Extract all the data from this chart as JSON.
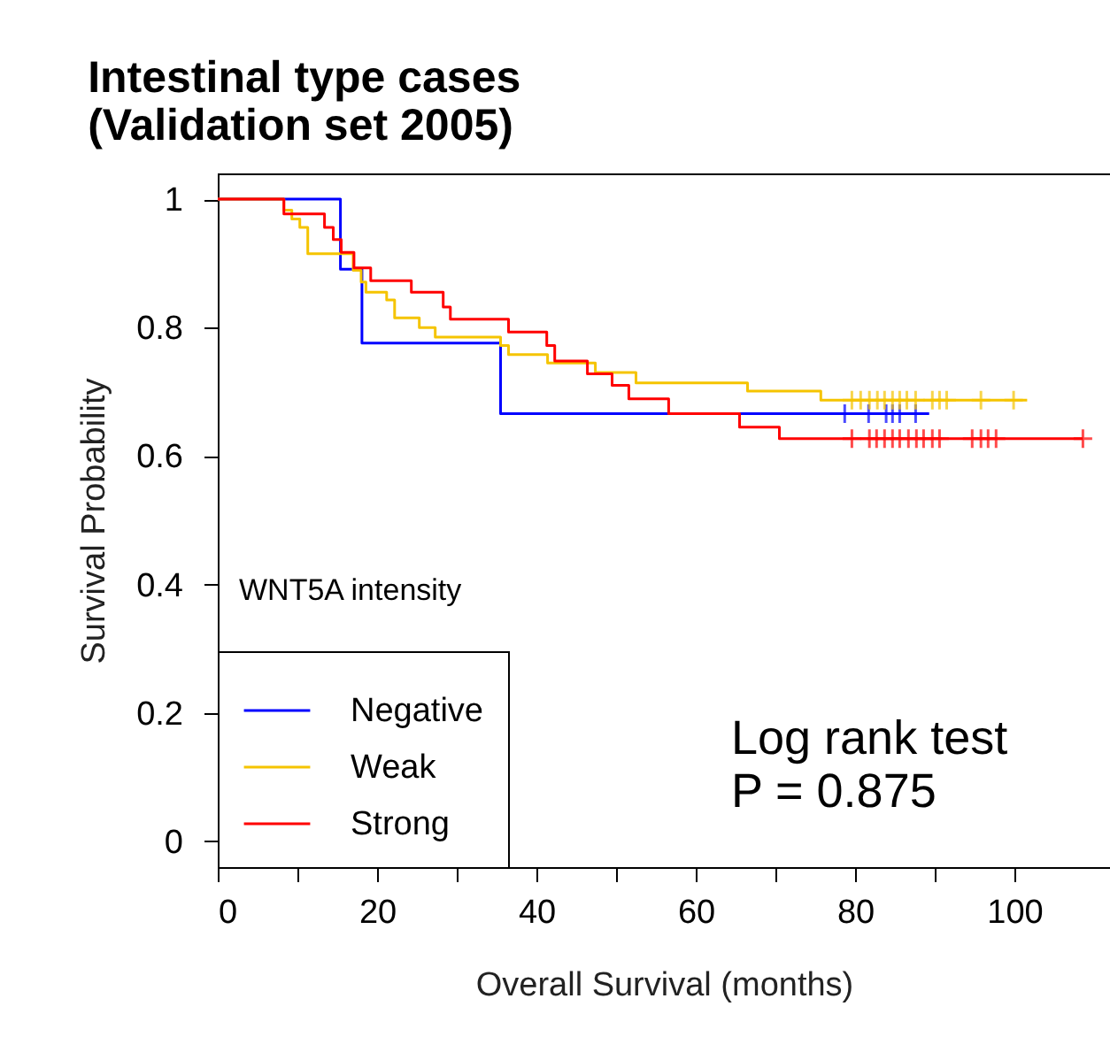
{
  "chart_data": {
    "type": "step",
    "title": "Intestinal type cases\n(Validation set 2005)",
    "xlabel": "Overall Survival (months)",
    "ylabel": "Survival Probability",
    "legend_title": "WNT5A intensity",
    "legend": "bottom left",
    "xlim": [
      0,
      112
    ],
    "ylim": [
      -0.04,
      1.04
    ],
    "xticks": [
      0,
      {
        "value": 10,
        "label": null
      },
      20,
      {
        "value": 30,
        "label": null
      },
      40,
      {
        "value": 50,
        "label": null
      },
      60,
      {
        "value": 70,
        "label": null
      },
      80,
      {
        "value": 90,
        "label": null
      },
      100
    ],
    "yticks": [
      0,
      0.2,
      0.4,
      0.6,
      0.8,
      1
    ],
    "grid": false,
    "annotations": [
      "Log rank test",
      "P = 0.875"
    ],
    "series": [
      {
        "name": "Negative",
        "color": "#0000ff",
        "x": [
          0,
          15.4,
          18.1,
          35.5,
          89.3
        ],
        "values": [
          1.0,
          0.891,
          0.776,
          0.666,
          0.666
        ]
      },
      {
        "name": "Weak",
        "color": "#f5c400",
        "x": [
          0,
          8.3,
          9.3,
          10.3,
          11.3,
          17.0,
          18.0,
          18.6,
          21.2,
          22.2,
          25.3,
          27.3,
          35.5,
          36.5,
          41.4,
          47.4,
          52.5,
          66.5,
          75.7,
          101.6
        ],
        "values": [
          1.0,
          0.983,
          0.969,
          0.956,
          0.915,
          0.889,
          0.871,
          0.855,
          0.843,
          0.815,
          0.8,
          0.785,
          0.772,
          0.758,
          0.745,
          0.73,
          0.714,
          0.701,
          0.687,
          0.687
        ]
      },
      {
        "name": "Strong",
        "color": "#ff0000",
        "x": [
          0,
          8.3,
          13.4,
          14.5,
          15.5,
          17.1,
          19.2,
          24.3,
          28.3,
          29.2,
          36.5,
          41.3,
          42.3,
          46.4,
          49.5,
          51.6,
          56.6,
          65.5,
          70.5,
          108.6
        ],
        "values": [
          1.0,
          0.977,
          0.956,
          0.937,
          0.917,
          0.893,
          0.873,
          0.855,
          0.832,
          0.813,
          0.793,
          0.772,
          0.748,
          0.728,
          0.71,
          0.689,
          0.666,
          0.645,
          0.627,
          0.627
        ]
      },
      {
        "color": "#0000ff",
        "type": "scatter",
        "marker": "cross",
        "x": [
          78.7,
          81.7,
          83.9,
          84.7,
          85.6,
          87.6
        ],
        "values": [
          0.666,
          0.666,
          0.666,
          0.666,
          0.666,
          0.666
        ]
      },
      {
        "color": "#f5c400",
        "type": "scatter",
        "marker": "cross",
        "x": [
          79.6,
          80.7,
          81.8,
          82.8,
          83.7,
          84.7,
          85.6,
          86.5,
          87.6,
          89.7,
          90.6,
          91.5,
          95.8,
          99.9
        ],
        "values": [
          0.687,
          0.687,
          0.687,
          0.687,
          0.687,
          0.687,
          0.687,
          0.687,
          0.687,
          0.687,
          0.687,
          0.687,
          0.687,
          0.687
        ]
      },
      {
        "color": "#ff0000",
        "type": "scatter",
        "marker": "cross",
        "x": [
          79.6,
          81.8,
          82.7,
          83.7,
          84.7,
          85.6,
          86.7,
          87.7,
          88.6,
          89.7,
          90.6,
          94.7,
          95.8,
          96.7,
          97.7,
          108.6
        ],
        "values": [
          0.627,
          0.627,
          0.627,
          0.627,
          0.627,
          0.627,
          0.627,
          0.627,
          0.627,
          0.627,
          0.627,
          0.627,
          0.627,
          0.627,
          0.627,
          0.627
        ]
      }
    ]
  }
}
